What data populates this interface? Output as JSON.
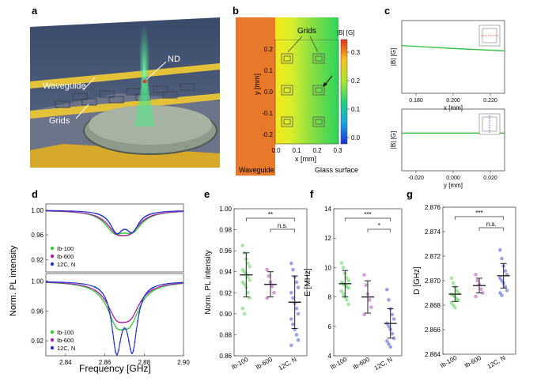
{
  "panels": {
    "a": {
      "letter": "a",
      "labels": {
        "nd": "ND",
        "waveguide": "Waveguide",
        "grids": "Grids"
      }
    },
    "b": {
      "letter": "b",
      "grids_label": "Grids",
      "colorbar_title": "|B| [G]",
      "colorbar_ticks": [
        "0.3",
        "0.2",
        "0.1",
        "0.0"
      ],
      "xlabel": "x [mm]",
      "ylabel": "y [mm]",
      "xticks": [
        "0.0",
        "0.1",
        "0.2",
        "0.3"
      ],
      "yticks": [
        "0.2",
        "0.1",
        "0.0",
        "-0.1",
        "-0.2"
      ],
      "waveguide_label": "Waveguide",
      "glass_label": "Glass surface"
    },
    "c": {
      "letter": "c",
      "top": {
        "ylabel": "|B| [G]",
        "xlabel": "x [mm]",
        "xticks": [
          "0.180",
          "0.200",
          "0.220"
        ],
        "yticks": [
          "0.2",
          "0.1"
        ]
      },
      "bottom": {
        "ylabel": "|B| [G]",
        "xlabel": "y [mm]",
        "xticks": [
          "-0.020",
          "0.000",
          "0.020"
        ],
        "yticks": [
          "0.2",
          "0.1"
        ]
      }
    },
    "d": {
      "letter": "d",
      "ylabel": "Norm. PL intensity",
      "xlabel": "Frequency [GHz]",
      "xticks": [
        "2.84",
        "2.86",
        "2.88",
        "2.90"
      ],
      "top_yticks": [
        "1.00",
        "0.96",
        "0.92"
      ],
      "bottom_yticks": [
        "1.00",
        "0.96",
        "0.92"
      ],
      "legend": [
        "Ib-100",
        "Ib-600",
        "12C, N"
      ]
    },
    "e": {
      "letter": "e",
      "ylabel": "Norm. PL intensity",
      "yticks": [
        "1.00",
        "0.98",
        "0.96",
        "0.94",
        "0.92",
        "0.90",
        "0.88",
        "0.86"
      ],
      "categories": [
        "Ib-100",
        "Ib-600",
        "12C, N"
      ],
      "sig_top": "**",
      "sig_bottom": "n.s."
    },
    "f": {
      "letter": "f",
      "ylabel": "E [MHz]",
      "yticks": [
        "14",
        "12",
        "10",
        "8",
        "6",
        "4"
      ],
      "categories": [
        "Ib-100",
        "Ib-600",
        "12C, N"
      ],
      "sig_top": "***",
      "sig_bottom": "*"
    },
    "g": {
      "letter": "g",
      "ylabel": "D [GHz]",
      "yticks": [
        "2.876",
        "2.874",
        "2.872",
        "2.870",
        "2.868",
        "2.866",
        "2.864"
      ],
      "categories": [
        "Ib-100",
        "Ib-600",
        "12C, N"
      ],
      "sig_top": "***",
      "sig_bottom": "n.s."
    }
  },
  "colors": {
    "ib100": "#33cc33",
    "ib600": "#aa22aa",
    "c12": "#2233cc",
    "waveguide": "#e8782a",
    "grid_frame": "#555555"
  },
  "chart_data": [
    {
      "type": "line",
      "panel": "c-top",
      "xlabel": "x [mm]",
      "ylabel": "|B| [G]",
      "xlim": [
        0.17,
        0.23
      ],
      "ylim": [
        0.05,
        0.3
      ],
      "series": [
        {
          "x": [
            0.17,
            0.185,
            0.2,
            0.215,
            0.23
          ],
          "y": [
            0.214,
            0.209,
            0.204,
            0.2,
            0.196
          ]
        }
      ]
    },
    {
      "type": "line",
      "panel": "c-bottom",
      "xlabel": "y [mm]",
      "ylabel": "|B| [G]",
      "xlim": [
        -0.03,
        0.03
      ],
      "ylim": [
        0.05,
        0.3
      ],
      "series": [
        {
          "x": [
            -0.03,
            0.0,
            0.03
          ],
          "y": [
            0.203,
            0.203,
            0.203
          ]
        }
      ]
    },
    {
      "type": "line",
      "panel": "d-top",
      "xlabel": "Frequency [GHz]",
      "ylabel": "Norm. PL intensity",
      "xlim": [
        2.83,
        2.9
      ],
      "ylim": [
        0.9,
        1.01
      ],
      "series": [
        {
          "name": "Ib-100",
          "dips": [
            [
              2.865,
              0.97
            ],
            [
              2.874,
              0.972
            ]
          ],
          "width": 0.006
        },
        {
          "name": "Ib-600",
          "dips": [
            [
              2.866,
              0.972
            ],
            [
              2.873,
              0.973
            ]
          ],
          "width": 0.006
        },
        {
          "name": "12C, N",
          "dips": [
            [
              2.866,
              0.968
            ],
            [
              2.874,
              0.97
            ]
          ],
          "width": 0.004
        }
      ]
    },
    {
      "type": "line",
      "panel": "d-bottom",
      "xlabel": "Frequency [GHz]",
      "ylabel": "Norm. PL intensity",
      "xlim": [
        2.83,
        2.9
      ],
      "ylim": [
        0.9,
        1.01
      ],
      "series": [
        {
          "name": "Ib-100",
          "dips": [
            [
              2.866,
              0.955
            ],
            [
              2.873,
              0.958
            ]
          ],
          "width": 0.006
        },
        {
          "name": "Ib-600",
          "dips": [
            [
              2.866,
              0.962
            ],
            [
              2.873,
              0.964
            ]
          ],
          "width": 0.006
        },
        {
          "name": "12C, N",
          "dips": [
            [
              2.866,
              0.912
            ],
            [
              2.874,
              0.914
            ]
          ],
          "width": 0.003
        }
      ]
    },
    {
      "type": "scatter",
      "panel": "e",
      "ylabel": "Norm. PL intensity",
      "ylim": [
        0.86,
        1.0
      ],
      "categories": [
        "Ib-100",
        "Ib-600",
        "12C, N"
      ],
      "series": [
        {
          "name": "Ib-100",
          "mean": 0.937,
          "sd": 0.021,
          "points": [
            0.965,
            0.958,
            0.952,
            0.948,
            0.945,
            0.942,
            0.94,
            0.938,
            0.935,
            0.932,
            0.93,
            0.928,
            0.925,
            0.92,
            0.915,
            0.905,
            0.9
          ]
        },
        {
          "name": "Ib-600",
          "mean": 0.928,
          "sd": 0.012,
          "points": [
            0.942,
            0.936,
            0.93,
            0.926,
            0.92,
            0.915
          ]
        },
        {
          "name": "12C, N",
          "mean": 0.911,
          "sd": 0.025,
          "points": [
            0.948,
            0.942,
            0.935,
            0.93,
            0.925,
            0.92,
            0.915,
            0.91,
            0.905,
            0.9,
            0.895,
            0.89,
            0.885,
            0.88,
            0.875,
            0.87
          ]
        }
      ]
    },
    {
      "type": "scatter",
      "panel": "f",
      "ylabel": "E [MHz]",
      "ylim": [
        4,
        14
      ],
      "categories": [
        "Ib-100",
        "Ib-600",
        "12C, N"
      ],
      "series": [
        {
          "name": "Ib-100",
          "mean": 8.9,
          "sd": 0.9,
          "points": [
            10.3,
            10.0,
            9.6,
            9.3,
            9.1,
            9.0,
            8.9,
            8.8,
            8.7,
            8.6,
            8.4,
            8.2,
            8.0,
            7.8,
            7.5
          ]
        },
        {
          "name": "Ib-600",
          "mean": 8.0,
          "sd": 1.1,
          "points": [
            9.5,
            8.8,
            8.2,
            7.8,
            7.3,
            6.8
          ]
        },
        {
          "name": "12C, N",
          "mean": 6.2,
          "sd": 1.0,
          "points": [
            8.5,
            7.8,
            7.2,
            6.8,
            6.5,
            6.2,
            6.0,
            5.8,
            5.5,
            5.2,
            5.0,
            4.8,
            4.6
          ]
        }
      ]
    },
    {
      "type": "scatter",
      "panel": "g",
      "ylabel": "D [GHz]",
      "ylim": [
        2.864,
        2.876
      ],
      "categories": [
        "Ib-100",
        "Ib-600",
        "12C, N"
      ],
      "series": [
        {
          "name": "Ib-100",
          "mean": 2.8689,
          "sd": 0.0006,
          "points": [
            2.8702,
            2.8698,
            2.8695,
            2.8692,
            2.869,
            2.8689,
            2.8688,
            2.8687,
            2.8685,
            2.8684,
            2.8682,
            2.868,
            2.8678
          ]
        },
        {
          "name": "Ib-600",
          "mean": 2.8696,
          "sd": 0.0006,
          "points": [
            2.8705,
            2.87,
            2.8697,
            2.8693,
            2.869,
            2.8687
          ]
        },
        {
          "name": "12C, N",
          "mean": 2.8704,
          "sd": 0.001,
          "points": [
            2.8725,
            2.8718,
            2.8712,
            2.8708,
            2.8705,
            2.8702,
            2.87,
            2.8698,
            2.8695,
            2.8692,
            2.869,
            2.8688
          ]
        }
      ]
    }
  ]
}
